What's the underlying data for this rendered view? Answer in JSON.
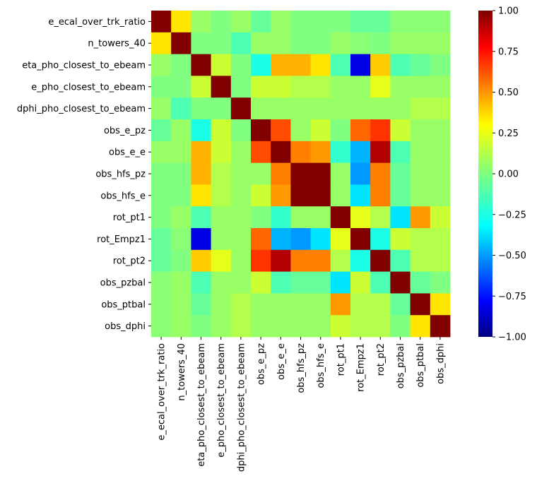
{
  "chart_data": {
    "type": "heatmap",
    "title": "",
    "xlabel": "",
    "ylabel": "",
    "colormap": "jet",
    "vmin": -1.0,
    "vmax": 1.0,
    "colorbar_ticks": [
      1.0,
      0.75,
      0.5,
      0.25,
      0.0,
      -0.25,
      -0.5,
      -0.75,
      -1.0
    ],
    "colorbar_tick_labels": [
      "1.00",
      "0.75",
      "0.50",
      "0.25",
      "0.00",
      "−0.25",
      "−0.50",
      "−0.75",
      "−1.00"
    ],
    "row_labels": [
      "e_ecal_over_trk_ratio",
      "n_towers_40",
      "eta_pho_closest_to_ebeam",
      "e_pho_closest_to_ebeam",
      "dphi_pho_closest_to_ebeam",
      "obs_e_pz",
      "obs_e_e",
      "obs_hfs_pz",
      "obs_hfs_e",
      "rot_pt1",
      "rot_Empz1",
      "rot_pt2",
      "obs_pzbal",
      "obs_ptbal",
      "obs_dphi"
    ],
    "col_labels": [
      "e_ecal_over_trk_ratio",
      "n_towers_40",
      "eta_pho_closest_to_ebeam",
      "e_pho_closest_to_ebeam",
      "dphi_pho_closest_to_ebeam",
      "obs_e_pz",
      "obs_e_e",
      "obs_hfs_pz",
      "obs_hfs_e",
      "rot_pt1",
      "rot_Empz1",
      "rot_pt2",
      "obs_pzbal",
      "obs_ptbal",
      "obs_dphi"
    ],
    "values": [
      [
        1.0,
        0.3,
        0.05,
        0.0,
        0.05,
        -0.05,
        0.05,
        0.0,
        0.0,
        0.0,
        -0.05,
        -0.05,
        0.02,
        0.02,
        0.02
      ],
      [
        0.3,
        1.0,
        0.0,
        0.0,
        -0.1,
        0.05,
        0.05,
        0.0,
        0.0,
        0.05,
        0.02,
        0.0,
        0.05,
        0.05,
        0.05
      ],
      [
        0.05,
        0.0,
        1.0,
        0.15,
        0.0,
        -0.2,
        0.4,
        0.4,
        0.3,
        -0.1,
        -0.8,
        0.35,
        -0.1,
        -0.05,
        0.0
      ],
      [
        0.0,
        0.0,
        0.15,
        1.0,
        0.0,
        0.15,
        0.15,
        0.1,
        0.1,
        0.05,
        0.05,
        0.2,
        0.05,
        0.05,
        0.05
      ],
      [
        0.05,
        -0.1,
        0.0,
        0.0,
        1.0,
        0.05,
        0.05,
        0.05,
        0.05,
        0.05,
        0.05,
        0.05,
        0.05,
        0.1,
        0.1
      ],
      [
        -0.05,
        0.05,
        -0.2,
        0.15,
        0.0,
        1.0,
        0.6,
        0.05,
        0.15,
        0.0,
        0.55,
        0.65,
        0.15,
        0.05,
        0.05
      ],
      [
        0.05,
        0.05,
        0.4,
        0.15,
        0.05,
        0.6,
        1.0,
        0.5,
        0.45,
        -0.15,
        -0.4,
        0.9,
        -0.1,
        0.05,
        0.05
      ],
      [
        0.0,
        0.0,
        0.4,
        0.1,
        0.05,
        0.05,
        0.5,
        1.0,
        1.0,
        0.05,
        -0.45,
        0.5,
        -0.05,
        0.05,
        0.05
      ],
      [
        0.0,
        0.0,
        0.3,
        0.1,
        0.05,
        0.15,
        0.45,
        1.0,
        1.0,
        0.05,
        -0.3,
        0.5,
        -0.05,
        0.05,
        0.05
      ],
      [
        0.0,
        0.05,
        -0.1,
        0.05,
        0.05,
        0.0,
        -0.15,
        0.05,
        0.05,
        1.0,
        0.2,
        0.1,
        -0.3,
        0.45,
        0.15
      ],
      [
        -0.05,
        0.02,
        -0.8,
        0.05,
        0.05,
        0.55,
        -0.4,
        -0.45,
        -0.3,
        0.2,
        1.0,
        -0.2,
        0.15,
        0.1,
        0.1
      ],
      [
        -0.05,
        0.0,
        0.35,
        0.2,
        0.05,
        0.65,
        0.9,
        0.5,
        0.5,
        0.1,
        -0.2,
        1.0,
        -0.1,
        0.1,
        0.1
      ],
      [
        0.02,
        0.05,
        -0.1,
        0.05,
        0.05,
        0.15,
        -0.1,
        -0.05,
        -0.05,
        -0.3,
        0.15,
        -0.1,
        1.0,
        -0.05,
        0.0
      ],
      [
        0.02,
        0.05,
        -0.05,
        0.05,
        0.1,
        0.05,
        0.05,
        0.05,
        0.05,
        0.45,
        0.1,
        0.1,
        -0.05,
        1.0,
        0.3
      ],
      [
        0.02,
        0.05,
        0.0,
        0.05,
        0.1,
        0.05,
        0.05,
        0.05,
        0.05,
        0.15,
        0.1,
        0.1,
        0.0,
        0.3,
        1.0
      ]
    ]
  }
}
